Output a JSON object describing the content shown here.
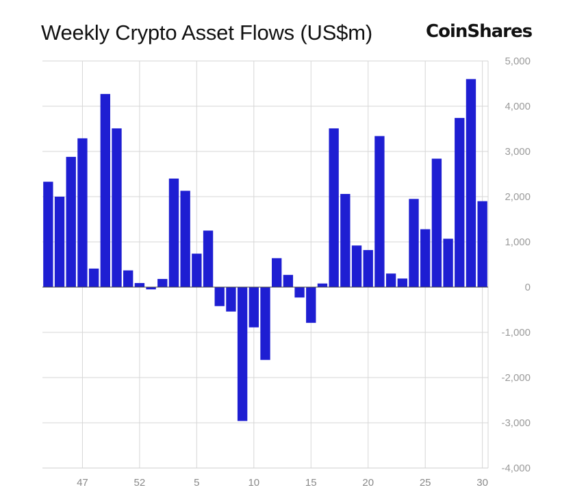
{
  "header": {
    "title": "Weekly Crypto Asset Flows (US$m)",
    "logo": "CoinShares"
  },
  "chart_data": {
    "type": "bar",
    "title": "Weekly Crypto Asset Flows (US$m)",
    "xlabel": "",
    "ylabel": "",
    "ylim": [
      -4000,
      5000
    ],
    "yticks": [
      5000,
      4000,
      3000,
      2000,
      1000,
      0,
      -1000,
      -2000,
      -3000,
      -4000
    ],
    "ytick_labels": [
      "5,000",
      "4,000",
      "3,000",
      "2,000",
      "1,000",
      "0",
      "-1,000",
      "-2,000",
      "-3,000",
      "-4,000"
    ],
    "x_weeks": [
      44,
      45,
      46,
      47,
      48,
      49,
      50,
      51,
      52,
      1,
      2,
      3,
      4,
      5,
      6,
      7,
      8,
      9,
      10,
      11,
      12,
      13,
      14,
      15,
      16,
      17,
      18,
      19,
      20,
      21,
      22,
      23,
      24,
      25,
      26,
      27,
      28,
      29,
      30
    ],
    "xtick_labels": [
      "47",
      "52",
      "5",
      "10",
      "15",
      "20",
      "25",
      "30"
    ],
    "values": [
      2330,
      2000,
      2880,
      3290,
      410,
      4270,
      3510,
      370,
      90,
      -50,
      180,
      2400,
      2130,
      740,
      1250,
      -420,
      -540,
      -2960,
      -890,
      -1610,
      640,
      270,
      -230,
      -790,
      80,
      3510,
      2060,
      920,
      820,
      3340,
      300,
      190,
      1950,
      1280,
      2840,
      1070,
      3740,
      4600,
      1900
    ],
    "bar_color": "#1e1ed2",
    "grid": true,
    "y_axis_position": "right"
  }
}
